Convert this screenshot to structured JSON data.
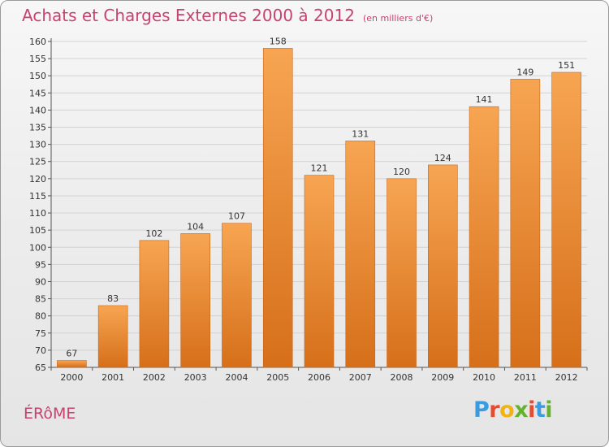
{
  "header": {
    "title": "Achats et Charges Externes 2000 à 2012",
    "subtitle": "(en milliers d'€)"
  },
  "footer": {
    "location": "ÉRôME",
    "logo_text": "Proxiti"
  },
  "colors": {
    "title": "#c8426f",
    "bar_top": "#f7a552",
    "bar_bottom": "#d66f1a",
    "logo_letters": [
      "#3b9be0",
      "#e64b2e",
      "#f2b211",
      "#63b32e",
      "#e64b2e",
      "#3b9be0",
      "#63b32e"
    ]
  },
  "chart_data": {
    "type": "bar",
    "title": "Achats et Charges Externes 2000 à 2012",
    "subtitle": "(en milliers d'€)",
    "categories": [
      "2000",
      "2001",
      "2002",
      "2003",
      "2004",
      "2005",
      "2006",
      "2007",
      "2008",
      "2009",
      "2010",
      "2011",
      "2012"
    ],
    "values": [
      67,
      83,
      102,
      104,
      107,
      158,
      121,
      131,
      120,
      124,
      141,
      149,
      151
    ],
    "ylim": [
      65,
      160
    ],
    "yticks": [
      65,
      70,
      75,
      80,
      85,
      90,
      95,
      100,
      105,
      110,
      115,
      120,
      125,
      130,
      135,
      140,
      145,
      150,
      155,
      160
    ],
    "grid": true,
    "legend": "none"
  }
}
